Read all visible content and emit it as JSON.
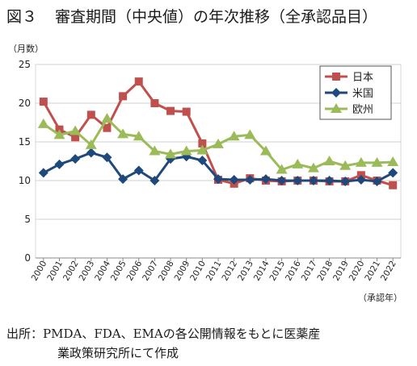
{
  "figure": {
    "label": "図３",
    "title": "審査期間（中央値）の年次推移（全承認品目）"
  },
  "source": {
    "prefix": "出所：",
    "line1": "PMDA、FDA、EMAの各公開情報をもとに医薬産",
    "line2": "業政策研究所にて作成"
  },
  "chart_data": {
    "type": "line",
    "y_unit_label": "（月数）",
    "x_unit_label": "（承認年）",
    "ylim": [
      0,
      25
    ],
    "y_ticks": [
      0,
      5,
      10,
      15,
      20,
      25
    ],
    "grid": true,
    "legend_position": "top-right",
    "categories": [
      "2000",
      "2001",
      "2002",
      "2003",
      "2004",
      "2005",
      "2006",
      "2007",
      "2008",
      "2009",
      "2010",
      "2011",
      "2012",
      "2013",
      "2014",
      "2015",
      "2016",
      "2017",
      "2018",
      "2019",
      "2020",
      "2021",
      "2022"
    ],
    "series": [
      {
        "name": "日本",
        "color": "#c0504d",
        "marker": "square",
        "values": [
          20.2,
          16.6,
          15.6,
          18.5,
          16.8,
          20.9,
          22.8,
          20.0,
          19.0,
          18.9,
          14.8,
          10.1,
          9.6,
          10.3,
          10.0,
          9.9,
          10.0,
          10.0,
          9.9,
          9.9,
          10.7,
          10.0,
          9.4
        ]
      },
      {
        "name": "米国",
        "color": "#1f497d",
        "marker": "diamond",
        "values": [
          11.0,
          12.1,
          12.8,
          13.6,
          13.0,
          10.2,
          11.3,
          10.0,
          12.8,
          13.1,
          12.6,
          10.2,
          10.1,
          10.1,
          10.2,
          10.0,
          10.0,
          10.0,
          10.0,
          9.9,
          10.1,
          9.9,
          11.0
        ]
      },
      {
        "name": "欧州",
        "color": "#9bbb59",
        "marker": "triangle",
        "values": [
          17.3,
          15.9,
          16.4,
          14.6,
          18.0,
          16.0,
          15.7,
          13.8,
          13.4,
          13.8,
          13.9,
          14.7,
          15.7,
          15.9,
          13.8,
          11.4,
          12.1,
          11.6,
          12.5,
          11.9,
          12.3,
          12.3,
          12.4
        ]
      }
    ]
  }
}
